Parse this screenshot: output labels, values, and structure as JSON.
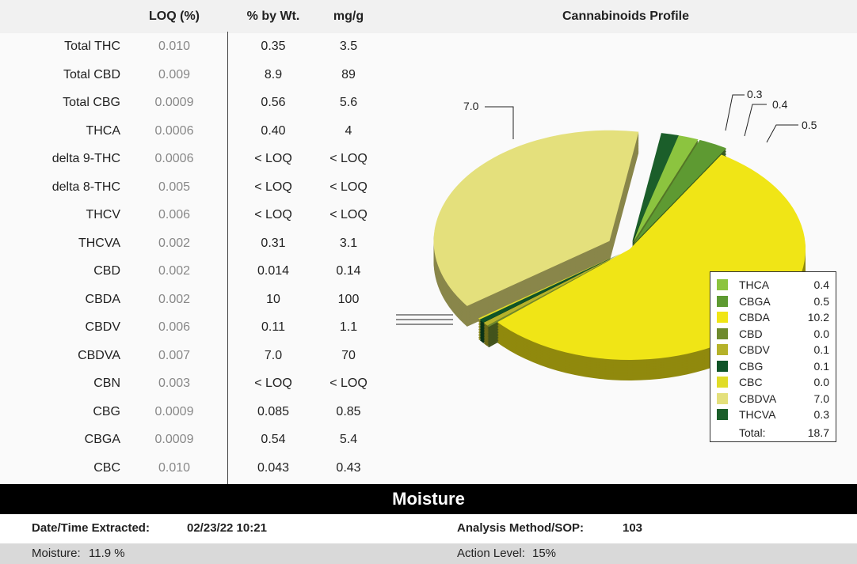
{
  "table": {
    "headers": {
      "loq": "LOQ (%)",
      "wt": "% by Wt.",
      "mg": "mg/g"
    },
    "rows": [
      {
        "name": "Total THC",
        "loq": "0.010",
        "wt": "0.35",
        "mg": "3.5"
      },
      {
        "name": "Total CBD",
        "loq": "0.009",
        "wt": "8.9",
        "mg": "89"
      },
      {
        "name": "Total CBG",
        "loq": "0.0009",
        "wt": "0.56",
        "mg": "5.6"
      },
      {
        "name": "THCA",
        "loq": "0.0006",
        "wt": "0.40",
        "mg": "4"
      },
      {
        "name": "delta 9-THC",
        "loq": "0.0006",
        "wt": "< LOQ",
        "mg": "< LOQ"
      },
      {
        "name": "delta 8-THC",
        "loq": "0.005",
        "wt": "< LOQ",
        "mg": "< LOQ"
      },
      {
        "name": "THCV",
        "loq": "0.006",
        "wt": "< LOQ",
        "mg": "< LOQ"
      },
      {
        "name": "THCVA",
        "loq": "0.002",
        "wt": "0.31",
        "mg": "3.1"
      },
      {
        "name": "CBD",
        "loq": "0.002",
        "wt": "0.014",
        "mg": "0.14"
      },
      {
        "name": "CBDA",
        "loq": "0.002",
        "wt": "10",
        "mg": "100"
      },
      {
        "name": "CBDV",
        "loq": "0.006",
        "wt": "0.11",
        "mg": "1.1"
      },
      {
        "name": "CBDVA",
        "loq": "0.007",
        "wt": "7.0",
        "mg": "70"
      },
      {
        "name": "CBN",
        "loq": "0.003",
        "wt": "< LOQ",
        "mg": "< LOQ"
      },
      {
        "name": "CBG",
        "loq": "0.0009",
        "wt": "0.085",
        "mg": "0.85"
      },
      {
        "name": "CBGA",
        "loq": "0.0009",
        "wt": "0.54",
        "mg": "5.4"
      },
      {
        "name": "CBC",
        "loq": "0.010",
        "wt": "0.043",
        "mg": "0.43"
      }
    ]
  },
  "chart_data": {
    "type": "pie",
    "title": "Cannabinoids Profile",
    "legend_position": "bottom-right",
    "slices": [
      {
        "name": "THCA",
        "value": 0.4,
        "color": "#8cc43f"
      },
      {
        "name": "CBGA",
        "value": 0.5,
        "color": "#5e9a32"
      },
      {
        "name": "CBDA",
        "value": 10.2,
        "color": "#f0e516"
      },
      {
        "name": "CBD",
        "value": 0.0,
        "color": "#6e8a2e"
      },
      {
        "name": "CBDV",
        "value": 0.1,
        "color": "#b5b22a"
      },
      {
        "name": "CBG",
        "value": 0.1,
        "color": "#0f5428"
      },
      {
        "name": "CBC",
        "value": 0.0,
        "color": "#e0dc28"
      },
      {
        "name": "CBDVA",
        "value": 7.0,
        "color": "#e4e07c"
      },
      {
        "name": "THCVA",
        "value": 0.3,
        "color": "#1b5e2a"
      }
    ],
    "total_label": "Total:",
    "total": "18.7",
    "callouts": [
      "7.0",
      "0.3",
      "0.4",
      "0.5"
    ]
  },
  "moisture": {
    "title": "Moisture",
    "date_label": "Date/Time Extracted:",
    "date_value": "02/23/22  10:21",
    "method_label": "Analysis Method/SOP:",
    "method_value": "103",
    "moisture_label": "Moisture:",
    "moisture_value": "11.9 %",
    "action_label": "Action Level:",
    "action_value": "15%"
  }
}
